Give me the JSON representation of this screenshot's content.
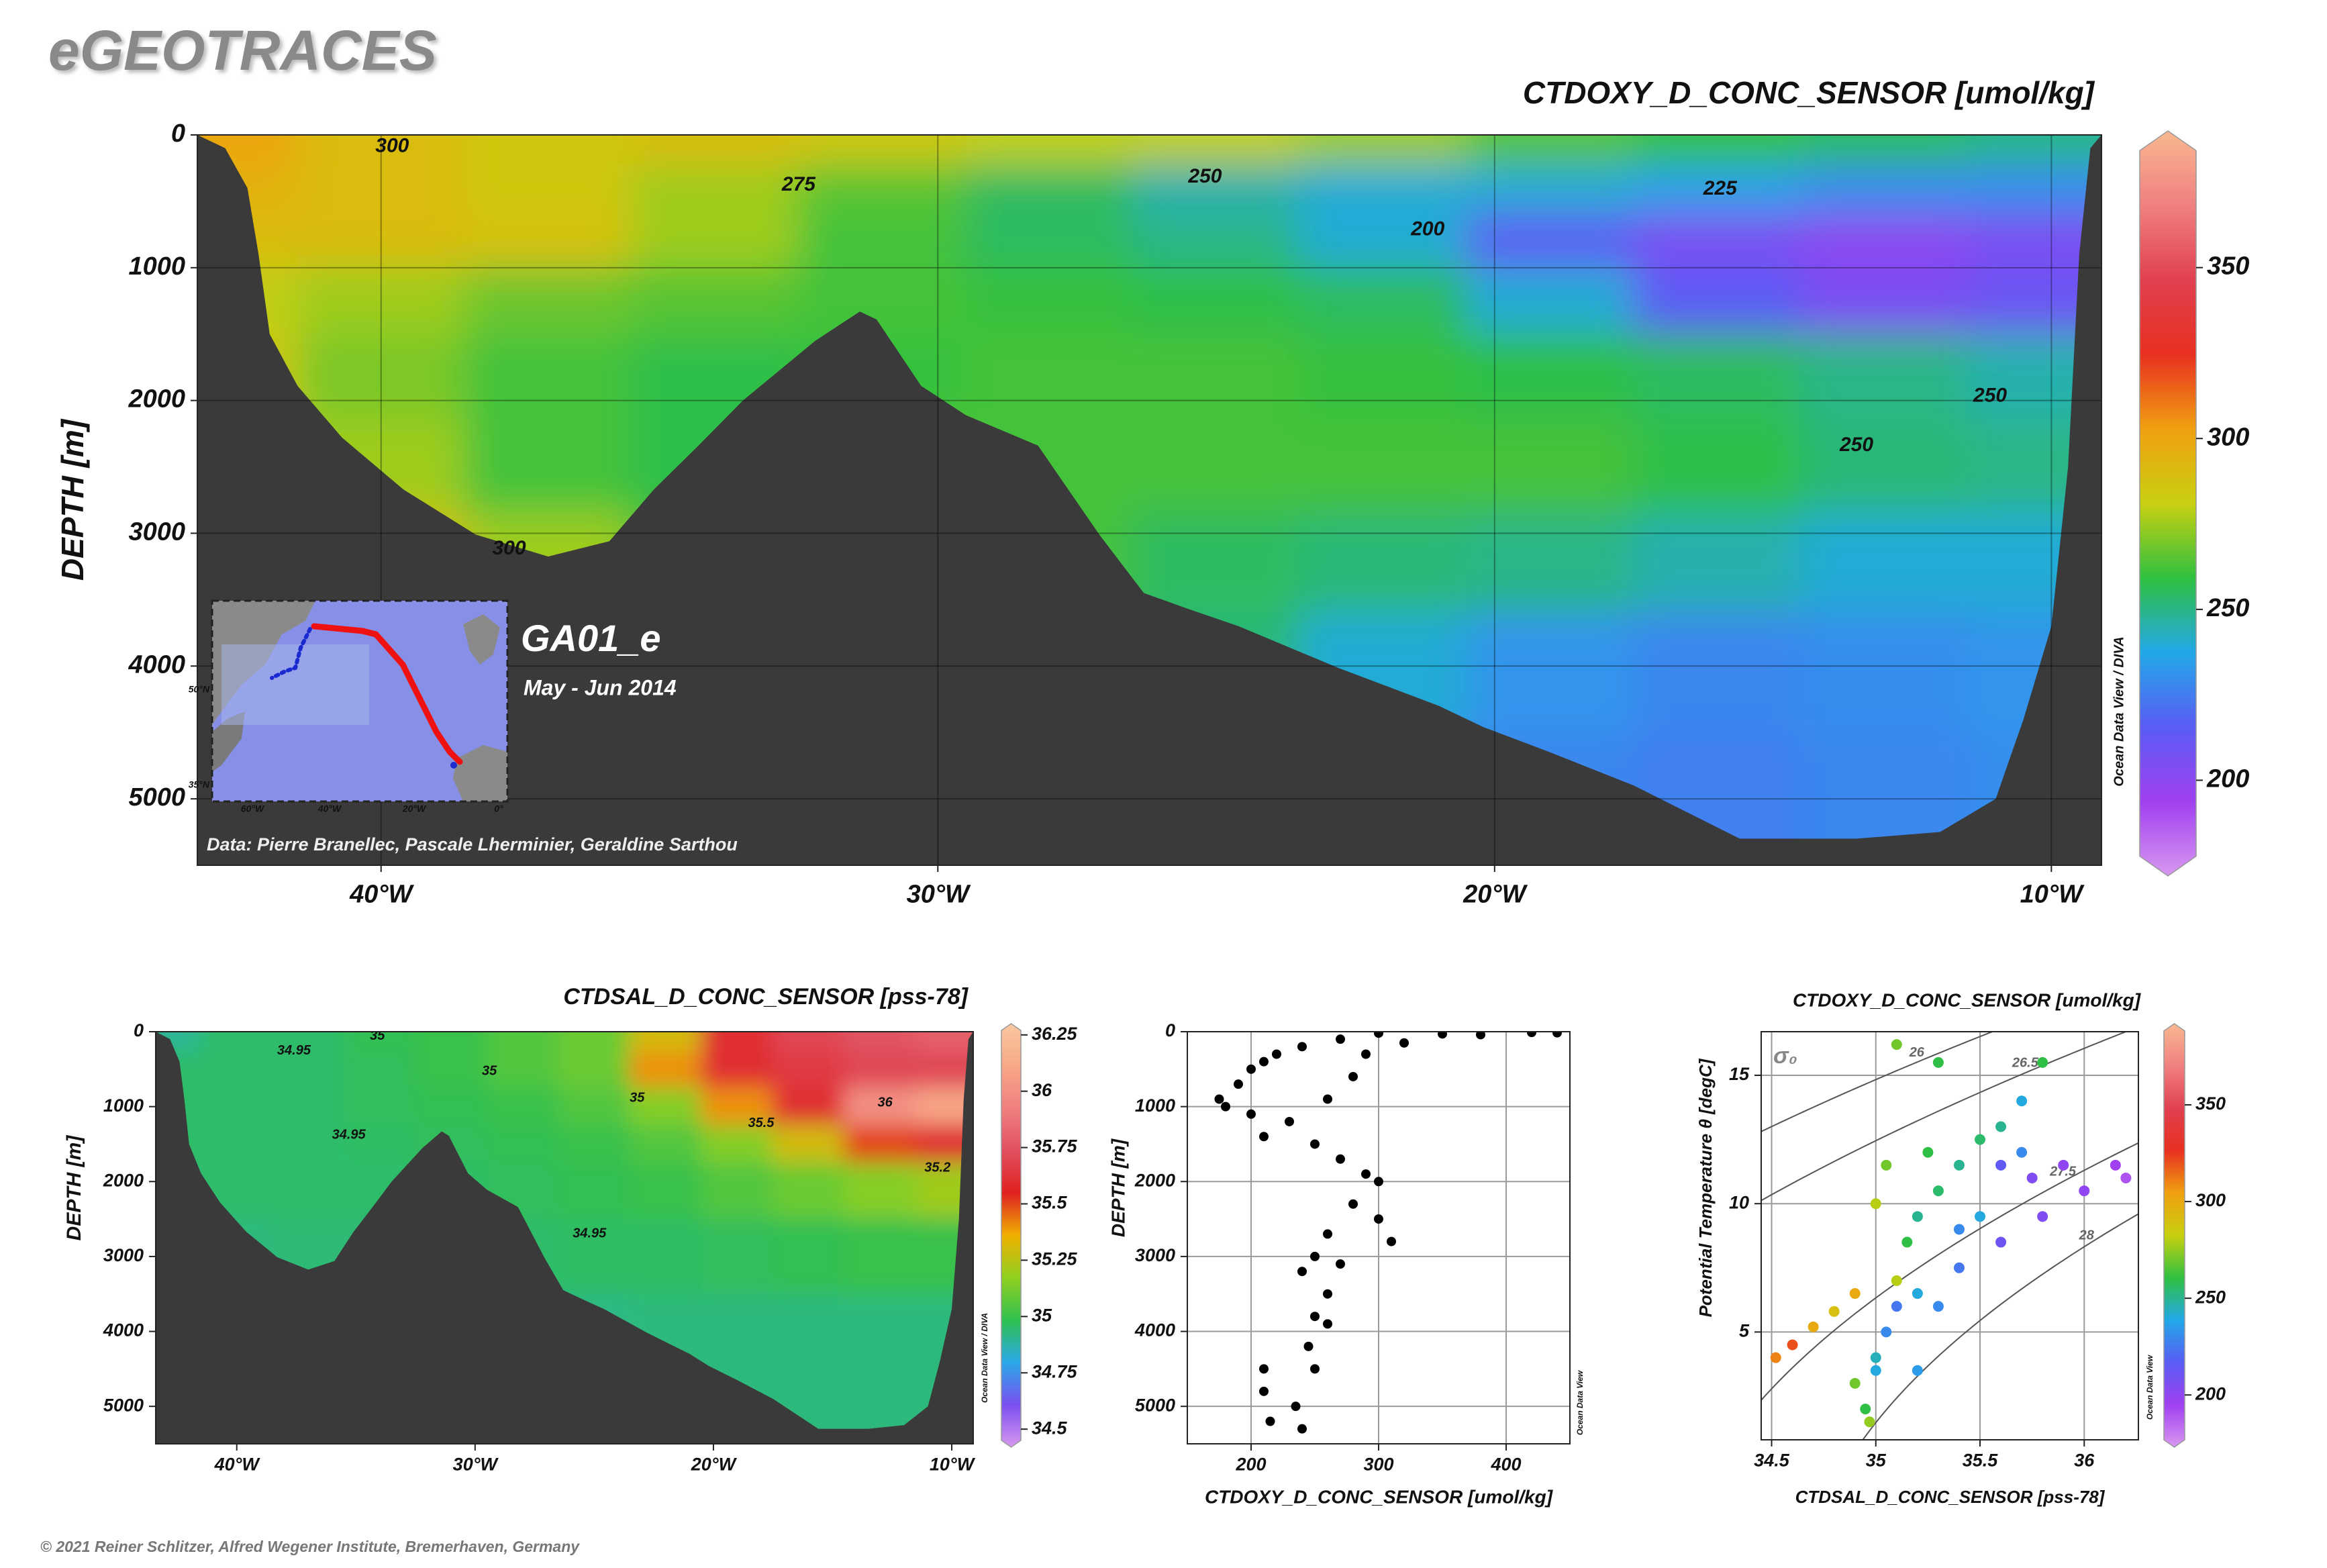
{
  "header": {
    "title": "eGEOTRACES"
  },
  "footer": {
    "copyright": "© 2021 Reiner Schlitzer, Alfred Wegener Institute, Bremerhaven, Germany"
  },
  "chart_data": [
    {
      "type": "section",
      "title": "CTDOXY_D_CONC_SENSOR [umol/kg]",
      "ylabel": "DEPTH [m]",
      "xlim": [
        -43.3,
        -9.1
      ],
      "ylim": [
        0,
        5500
      ],
      "y_inverted": true,
      "xticks": [
        {
          "value": -40,
          "label": "40°W"
        },
        {
          "value": -30,
          "label": "30°W"
        },
        {
          "value": -20,
          "label": "20°W"
        },
        {
          "value": -10,
          "label": "10°W"
        }
      ],
      "yticks": [
        0,
        1000,
        2000,
        3000,
        4000,
        5000
      ],
      "grid": true,
      "field": {
        "lon": [
          -43,
          -40,
          -37,
          -34,
          -31,
          -28,
          -25,
          -22,
          -19,
          -16,
          -13,
          -10
        ],
        "depth": [
          50,
          400,
          800,
          1200,
          1800,
          2500,
          3200,
          4000,
          5000
        ],
        "values": [
          [
            300,
            290,
            285,
            290,
            285,
            280,
            280,
            275,
            265,
            260,
            255,
            250
          ],
          [
            295,
            290,
            285,
            275,
            265,
            255,
            245,
            240,
            240,
            235,
            230,
            230
          ],
          [
            290,
            290,
            288,
            275,
            262,
            255,
            250,
            240,
            215,
            205,
            200,
            205
          ],
          [
            280,
            275,
            268,
            265,
            262,
            260,
            258,
            255,
            240,
            215,
            205,
            210
          ],
          [
            285,
            270,
            262,
            258,
            260,
            262,
            262,
            260,
            258,
            255,
            250,
            245
          ],
          [
            295,
            275,
            262,
            258,
            265,
            262,
            262,
            262,
            262,
            258,
            252,
            250
          ],
          [
            300,
            290,
            275,
            262,
            262,
            262,
            255,
            252,
            250,
            245,
            240,
            240
          ],
          [
            300,
            290,
            275,
            262,
            262,
            258,
            252,
            240,
            232,
            228,
            230,
            232
          ],
          [
            300,
            290,
            275,
            262,
            262,
            258,
            245,
            232,
            228,
            226,
            228,
            230
          ]
        ]
      },
      "bathymetry": {
        "lon": [
          -43.3,
          -42.8,
          -42.4,
          -42.2,
          -42.0,
          -41.5,
          -40.7,
          -39.6,
          -38.3,
          -37.0,
          -35.9,
          -35.1,
          -34.3,
          -33.5,
          -32.2,
          -31.4,
          -31.1,
          -30.3,
          -29.5,
          -28.2,
          -27.1,
          -26.3,
          -25.5,
          -24.6,
          -22.8,
          -21.0,
          -20.2,
          -19.0,
          -17.5,
          -15.6,
          -13.5,
          -12.0,
          -11.0,
          -10.5,
          -10.0,
          -9.7,
          -9.5,
          -9.3,
          -9.1
        ],
        "depth": [
          0,
          100,
          400,
          900,
          1500,
          1890,
          2280,
          2670,
          3010,
          3175,
          3060,
          2670,
          2340,
          2000,
          1550,
          1330,
          1390,
          1890,
          2110,
          2340,
          3010,
          3450,
          3570,
          3700,
          4015,
          4300,
          4460,
          4650,
          4900,
          5300,
          5300,
          5250,
          5000,
          4400,
          3700,
          2500,
          900,
          100,
          0
        ]
      },
      "contours": [
        {
          "level": 300,
          "lon": -39.8,
          "depth": 90
        },
        {
          "level": 275,
          "lon": -32.5,
          "depth": 380
        },
        {
          "level": 250,
          "lon": -25.2,
          "depth": 320
        },
        {
          "level": 225,
          "lon": -15.95,
          "depth": 410
        },
        {
          "level": 200,
          "lon": -21.2,
          "depth": 715
        },
        {
          "level": 250,
          "lon": -11.1,
          "depth": 1970
        },
        {
          "level": 250,
          "lon": -13.5,
          "depth": 2340
        },
        {
          "level": 300,
          "lon": -37.7,
          "depth": 3120
        }
      ],
      "colorbar": {
        "lim": [
          172,
          390
        ],
        "ticks": [
          200,
          250,
          300,
          350
        ],
        "colors": [
          "#d898f0",
          "#a040f0",
          "#5a5cf5",
          "#22a8e8",
          "#30c040",
          "#c8d010",
          "#f0a010",
          "#e83020",
          "#e04050",
          "#f08080",
          "#f8b890"
        ]
      },
      "watermark": "Ocean Data View / DIVA",
      "cruise": "GA01_e",
      "period": "May - Jun 2014",
      "credit": "Data: Pierre Branellec, Pascale Lherminier, Geraldine Sarthou",
      "inset_map": {
        "xticks": [
          "60°W",
          "40°W",
          "20°W",
          "0°"
        ],
        "yticks": [
          "50°N",
          "35°N"
        ]
      }
    },
    {
      "type": "section",
      "title": "CTDSAL_D_CONC_SENSOR [pss-78]",
      "ylabel": "DEPTH [m]",
      "xlim": [
        -43.4,
        -9.1
      ],
      "ylim": [
        0,
        5500
      ],
      "y_inverted": true,
      "xticks": [
        {
          "value": -40,
          "label": "40°W"
        },
        {
          "value": -30,
          "label": "30°W"
        },
        {
          "value": -20,
          "label": "20°W"
        },
        {
          "value": -10,
          "label": "10°W"
        }
      ],
      "yticks": [
        0,
        1000,
        2000,
        3000,
        4000,
        5000
      ],
      "grid": false,
      "field": {
        "lon": [
          -43,
          -40,
          -37,
          -34,
          -31,
          -28,
          -25,
          -22,
          -19,
          -16,
          -13,
          -10
        ],
        "depth": [
          50,
          500,
          1000,
          1500,
          2000,
          3000,
          4000,
          5000
        ],
        "values": [
          [
            34.9,
            34.95,
            34.95,
            34.98,
            35.0,
            35.05,
            35.1,
            35.3,
            35.6,
            35.7,
            35.75,
            35.8
          ],
          [
            34.95,
            34.95,
            34.95,
            34.97,
            35.0,
            35.05,
            35.1,
            35.4,
            35.6,
            35.65,
            35.7,
            35.7
          ],
          [
            34.95,
            34.95,
            34.95,
            34.97,
            34.98,
            35.0,
            35.05,
            35.15,
            35.4,
            35.6,
            36.0,
            36.1
          ],
          [
            34.95,
            34.95,
            34.95,
            34.96,
            34.97,
            34.98,
            35.0,
            35.05,
            35.15,
            35.3,
            35.5,
            35.6
          ],
          [
            34.95,
            34.95,
            34.95,
            34.95,
            34.96,
            34.97,
            34.98,
            35.0,
            35.05,
            35.1,
            35.15,
            35.2
          ],
          [
            34.93,
            34.93,
            34.94,
            34.94,
            34.95,
            34.95,
            34.96,
            34.96,
            34.97,
            34.98,
            35.0,
            35.0
          ],
          [
            34.92,
            34.92,
            34.92,
            34.92,
            34.92,
            34.92,
            34.92,
            34.93,
            34.93,
            34.93,
            34.93,
            34.93
          ],
          [
            34.92,
            34.92,
            34.92,
            34.92,
            34.92,
            34.92,
            34.92,
            34.93,
            34.93,
            34.93,
            34.93,
            34.93
          ]
        ]
      },
      "bathymetry": {
        "lon": [
          -43.4,
          -42.8,
          -42.4,
          -42.2,
          -42.0,
          -41.5,
          -40.7,
          -39.6,
          -38.3,
          -37.0,
          -35.9,
          -35.1,
          -34.3,
          -33.5,
          -32.2,
          -31.4,
          -31.1,
          -30.3,
          -29.5,
          -28.2,
          -27.1,
          -26.3,
          -25.5,
          -24.6,
          -22.8,
          -21.0,
          -20.2,
          -19.0,
          -17.5,
          -15.6,
          -13.5,
          -12.0,
          -11.0,
          -10.5,
          -10.0,
          -9.7,
          -9.5,
          -9.3,
          -9.1
        ],
        "depth": [
          0,
          100,
          400,
          900,
          1500,
          1890,
          2280,
          2670,
          3010,
          3175,
          3060,
          2670,
          2340,
          2000,
          1550,
          1330,
          1390,
          1890,
          2110,
          2340,
          3010,
          3450,
          3570,
          3700,
          4015,
          4300,
          4460,
          4650,
          4900,
          5300,
          5300,
          5250,
          5000,
          4400,
          3700,
          2500,
          900,
          100,
          0
        ]
      },
      "contours": [
        {
          "level": 34.95,
          "lon": -37.6,
          "depth": 257
        },
        {
          "level": 35,
          "lon": -29.4,
          "depth": 530
        },
        {
          "level": 35,
          "lon": -34.1,
          "depth": 60
        },
        {
          "level": 34.95,
          "lon": -35.3,
          "depth": 1380
        },
        {
          "level": 35.5,
          "lon": -18.0,
          "depth": 1225
        },
        {
          "level": 36,
          "lon": -12.8,
          "depth": 950
        },
        {
          "level": 35.2,
          "lon": -10.6,
          "depth": 1820
        },
        {
          "level": 34.95,
          "lon": -25.2,
          "depth": 2700
        },
        {
          "level": 35,
          "lon": -23.2,
          "depth": 890
        }
      ],
      "colorbar": {
        "lim": [
          34.42,
          36.3
        ],
        "ticks": [
          34.5,
          34.75,
          35,
          35.25,
          35.5,
          35.75,
          36,
          36.25
        ],
        "colors": [
          "#d898f0",
          "#7a50f0",
          "#2aa8e8",
          "#30c050",
          "#90d020",
          "#f0b000",
          "#e02020",
          "#e05060",
          "#f08080",
          "#f8a888",
          "#f8c8a0"
        ]
      },
      "watermark": "Ocean Data View / DIVA"
    },
    {
      "type": "profile",
      "xlabel": "CTDOXY_D_CONC_SENSOR [umol/kg]",
      "ylabel": "DEPTH [m]",
      "xlim": [
        150,
        450
      ],
      "ylim": [
        0,
        5500
      ],
      "y_inverted": true,
      "xticks": [
        200,
        300,
        400
      ],
      "yticks": [
        0,
        1000,
        2000,
        3000,
        4000,
        5000
      ],
      "grid": true,
      "color": "#000000",
      "x": [
        300,
        350,
        420,
        440,
        380,
        270,
        240,
        220,
        210,
        200,
        190,
        175,
        180,
        200,
        230,
        260,
        280,
        290,
        320,
        210,
        250,
        270,
        290,
        300,
        280,
        300,
        310,
        260,
        250,
        240,
        270,
        260,
        250,
        245,
        250,
        210,
        210,
        215,
        240,
        235,
        260
      ],
      "y": [
        20,
        30,
        10,
        15,
        40,
        100,
        200,
        300,
        400,
        500,
        700,
        900,
        1000,
        1100,
        1200,
        900,
        600,
        300,
        150,
        1400,
        1500,
        1700,
        1900,
        2000,
        2300,
        2500,
        2800,
        2700,
        3000,
        3200,
        3100,
        3500,
        3800,
        4200,
        4500,
        4500,
        4800,
        5200,
        5300,
        5000,
        3900
      ],
      "watermark": "Ocean Data View"
    },
    {
      "type": "scatter",
      "title": "CTDOXY_D_CONC_SENSOR [umol/kg]",
      "xlabel": "CTDSAL_D_CONC_SENSOR [pss-78]",
      "ylabel": "Potential Temperature θ [degC]",
      "xlim": [
        34.45,
        36.26
      ],
      "ylim": [
        0.8,
        16.7
      ],
      "xticks": [
        34.5,
        35,
        35.5,
        36
      ],
      "yticks": [
        5,
        10,
        15
      ],
      "grid": true,
      "density_label": "σ₀",
      "isopycnals": [
        26,
        26.5,
        27.5,
        28
      ],
      "x": [
        34.52,
        34.6,
        34.7,
        34.8,
        34.9,
        34.95,
        34.97,
        35.0,
        35.05,
        35.1,
        35.15,
        35.2,
        35.3,
        35.4,
        35.5,
        35.6,
        35.7,
        35.8,
        35.1,
        35.3,
        35.6,
        35.75,
        35.9,
        36.0,
        36.15,
        36.2,
        35.4,
        35.6,
        35.8,
        35.3,
        35.0,
        35.1,
        35.2,
        35.4,
        35.25,
        35.0,
        35.05,
        34.9,
        35.5,
        35.7,
        35.2
      ],
      "y": [
        4.0,
        4.5,
        5.2,
        5.8,
        3.0,
        2.0,
        1.5,
        3.5,
        5.0,
        7.0,
        8.5,
        9.5,
        10.5,
        11.5,
        12.5,
        13.0,
        14.0,
        15.5,
        16.2,
        15.5,
        11.5,
        11.0,
        11.5,
        10.5,
        11.5,
        11.0,
        7.5,
        8.5,
        9.5,
        6.0,
        4.0,
        6.0,
        6.5,
        9.0,
        12.0,
        10.0,
        11.5,
        6.5,
        9.5,
        12.0,
        3.5
      ],
      "color_values": [
        310,
        320,
        300,
        290,
        270,
        260,
        275,
        240,
        230,
        280,
        260,
        250,
        255,
        250,
        255,
        250,
        240,
        260,
        270,
        260,
        215,
        205,
        200,
        200,
        195,
        190,
        225,
        210,
        205,
        230,
        245,
        225,
        240,
        230,
        260,
        280,
        270,
        300,
        240,
        230,
        235
      ],
      "colorbar": {
        "lim": [
          173,
          392
        ],
        "ticks": [
          200,
          250,
          300,
          350
        ],
        "colors": [
          "#d898f0",
          "#a040f0",
          "#5a5cf5",
          "#22a8e8",
          "#30c040",
          "#c8d010",
          "#f0a010",
          "#e83020",
          "#e04050",
          "#f08080",
          "#f8b890"
        ]
      },
      "watermark": "Ocean Data View"
    }
  ]
}
